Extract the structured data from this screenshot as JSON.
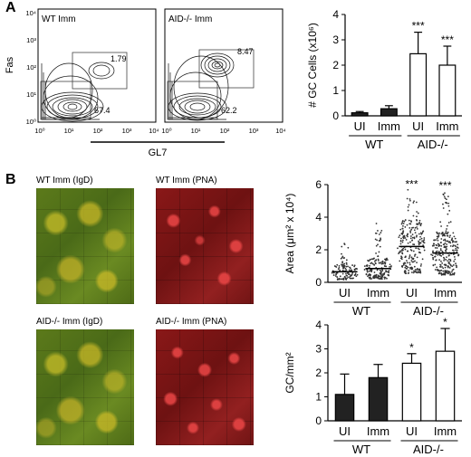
{
  "panel_a": {
    "letter": "A",
    "flow": {
      "ylabel": "Fas",
      "xlabel": "GL7",
      "tick_labels": [
        "10⁰",
        "10¹",
        "10²",
        "10³",
        "10⁴"
      ],
      "plots": [
        {
          "title": "WT Imm",
          "gate_upper": "1.79",
          "gate_lower": "67.4"
        },
        {
          "title": "AID-/- Imm",
          "gate_upper": "8.47",
          "gate_lower": "62.2"
        }
      ]
    }
  },
  "panel_b": {
    "letter": "B",
    "images": [
      {
        "label": "WT Imm (IgD)"
      },
      {
        "label": "WT Imm (PNA)"
      },
      {
        "label": "AID-/- Imm (IgD)"
      },
      {
        "label": "AID-/- Imm (PNA)"
      }
    ]
  },
  "group_labels": {
    "wt": "WT",
    "aid": "AID-/-"
  },
  "colors": {
    "filled_bar": "#222222",
    "open_bar": "#ffffff",
    "dots": "#333333"
  },
  "chart_data": [
    {
      "type": "bar",
      "id": "gc_cells",
      "categories": [
        "UI",
        "Imm",
        "UI",
        "Imm"
      ],
      "values": [
        0.12,
        0.28,
        2.45,
        2.0
      ],
      "errors": [
        0.05,
        0.12,
        0.85,
        0.75
      ],
      "fills": [
        "filled",
        "filled",
        "open",
        "open"
      ],
      "significance": [
        "",
        "",
        "***",
        "***"
      ],
      "ylabel": "# GC Cells (x10⁶)",
      "ylim": [
        0,
        4
      ],
      "yticks": [
        "0",
        "1",
        "2",
        "3",
        "4"
      ]
    },
    {
      "type": "scatter",
      "id": "gc_area",
      "categories": [
        "UI",
        "Imm",
        "UI",
        "Imm"
      ],
      "means": [
        0.65,
        0.85,
        2.2,
        1.8
      ],
      "max_values": [
        2.4,
        3.8,
        5.7,
        5.6
      ],
      "significance": [
        "",
        "",
        "***",
        "***"
      ],
      "ylabel": "Area (μm² x 10⁴)",
      "ylim": [
        0,
        6
      ],
      "yticks": [
        "0",
        "2",
        "4",
        "6"
      ]
    },
    {
      "type": "bar",
      "id": "gc_density",
      "categories": [
        "UI",
        "Imm",
        "UI",
        "Imm"
      ],
      "values": [
        1.1,
        1.8,
        2.4,
        2.9
      ],
      "errors": [
        0.85,
        0.55,
        0.4,
        0.95
      ],
      "fills": [
        "filled",
        "filled",
        "open",
        "open"
      ],
      "significance": [
        "",
        "",
        "*",
        "*"
      ],
      "ylabel": "GC/mm²",
      "ylim": [
        0,
        4
      ],
      "yticks": [
        "0",
        "1",
        "2",
        "3",
        "4"
      ]
    }
  ]
}
